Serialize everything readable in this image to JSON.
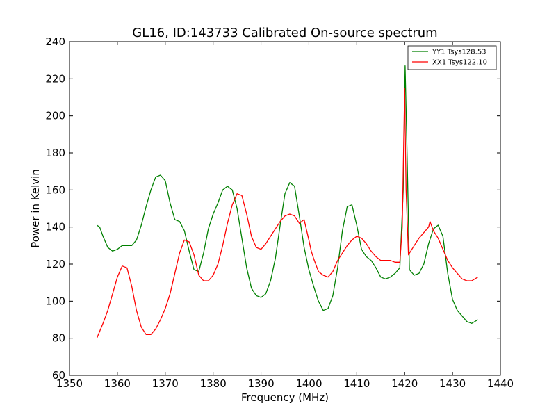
{
  "chart_data": {
    "type": "line",
    "title": "GL16, ID:143733 Calibrated On-source spectrum",
    "xlabel": "Frequency (MHz)",
    "ylabel": "Power in Kelvin",
    "xlim": [
      1350,
      1440
    ],
    "ylim": [
      60,
      240
    ],
    "xticks": [
      "1350",
      "1360",
      "1370",
      "1380",
      "1390",
      "1400",
      "1410",
      "1420",
      "1430",
      "1440"
    ],
    "yticks": [
      "60",
      "80",
      "100",
      "120",
      "140",
      "160",
      "180",
      "200",
      "220",
      "240"
    ],
    "grid": false,
    "legend_position": "top-right",
    "series": [
      {
        "name": "YY1 Tsys128.53",
        "color": "#008000",
        "x": [
          1355.7,
          1356.3,
          1357,
          1358,
          1359,
          1360,
          1361,
          1362,
          1363,
          1364,
          1365,
          1366,
          1367,
          1368,
          1369,
          1370,
          1371,
          1372,
          1373,
          1374,
          1375,
          1376,
          1377,
          1378,
          1379,
          1380,
          1381,
          1382,
          1383,
          1384,
          1385,
          1386,
          1387,
          1388,
          1389,
          1390,
          1391,
          1392,
          1393,
          1394,
          1395,
          1396,
          1397,
          1398,
          1399,
          1400,
          1401,
          1402,
          1403,
          1404,
          1405,
          1406,
          1407,
          1408,
          1409,
          1410,
          1411,
          1412,
          1413,
          1414,
          1415,
          1416,
          1417,
          1418,
          1419,
          1419.7,
          1420.1,
          1420.5,
          1421,
          1422,
          1423,
          1424,
          1425,
          1426,
          1427,
          1428,
          1429,
          1430,
          1431,
          1432,
          1433,
          1434,
          1435.3
        ],
        "values": [
          141,
          140,
          135,
          129,
          127,
          128,
          130,
          130,
          130,
          133,
          141,
          151,
          160,
          167,
          168,
          165,
          153,
          144,
          143,
          138,
          127,
          117,
          116,
          126,
          139,
          147,
          153,
          160,
          162,
          160,
          150,
          134,
          118,
          107,
          103,
          102,
          104,
          111,
          123,
          141,
          158,
          164,
          162,
          146,
          129,
          117,
          108,
          100,
          95,
          96,
          103,
          118,
          138,
          151,
          152,
          141,
          128,
          124,
          122,
          118,
          113,
          112,
          113,
          115,
          118,
          160,
          227,
          180,
          117,
          114,
          115,
          120,
          131,
          139,
          141,
          135,
          115,
          101,
          95,
          92,
          89,
          88,
          90
        ]
      },
      {
        "name": "XX1 Tsys122.10",
        "color": "#ff0000",
        "x": [
          1355.7,
          1357,
          1358,
          1359,
          1360,
          1361,
          1362,
          1363,
          1364,
          1365,
          1366,
          1367,
          1368,
          1369,
          1370,
          1371,
          1372,
          1373,
          1374,
          1375,
          1376,
          1377,
          1378,
          1379,
          1380,
          1381,
          1382,
          1383,
          1384,
          1385,
          1386,
          1387,
          1388,
          1389,
          1390,
          1391,
          1392,
          1393,
          1394,
          1395,
          1396,
          1397,
          1398,
          1399,
          1400,
          1400.5,
          1401,
          1402,
          1403,
          1404,
          1405,
          1406,
          1407,
          1408,
          1409,
          1410,
          1411,
          1412,
          1413,
          1414,
          1415,
          1416,
          1417,
          1418,
          1419,
          1419.5,
          1420,
          1420.3,
          1420.8,
          1421.5,
          1422,
          1423,
          1424,
          1425,
          1425.3,
          1426,
          1427,
          1428,
          1429,
          1430,
          1431,
          1432,
          1433,
          1434,
          1435.3
        ],
        "values": [
          80,
          88,
          95,
          104,
          113,
          119,
          118,
          108,
          95,
          86,
          82,
          82,
          85,
          90,
          96,
          104,
          115,
          126,
          133,
          132,
          125,
          114,
          111,
          111,
          114,
          120,
          130,
          142,
          152,
          158,
          157,
          147,
          135,
          129,
          128,
          131,
          135,
          139,
          143,
          146,
          147,
          146,
          142,
          144,
          133,
          127,
          123,
          116,
          114,
          113,
          116,
          122,
          126,
          130,
          133,
          135,
          134,
          131,
          127,
          124,
          122,
          122,
          122,
          121,
          121,
          140,
          215,
          160,
          125,
          128,
          130,
          134,
          137,
          140,
          143,
          138,
          134,
          128,
          122,
          118,
          115,
          112,
          111,
          111,
          113
        ]
      }
    ]
  }
}
